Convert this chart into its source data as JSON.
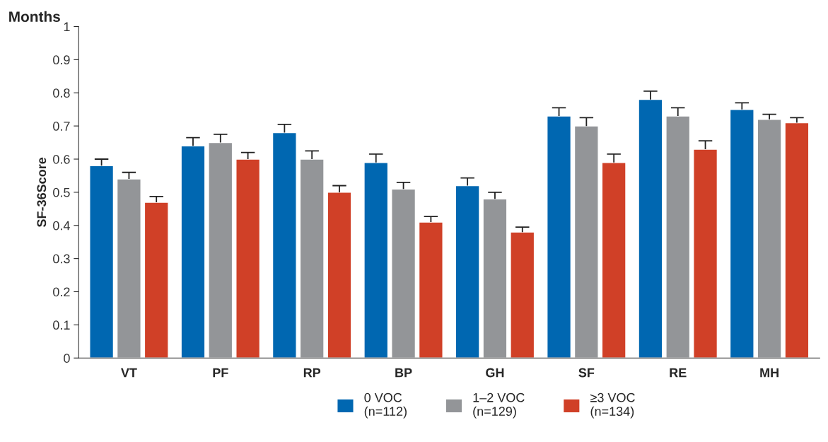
{
  "chart_data": {
    "type": "bar",
    "title": "Months",
    "ylabel": "SF-36Score",
    "categories": [
      "VT",
      "PF",
      "RP",
      "BP",
      "GH",
      "SF",
      "RE",
      "MH"
    ],
    "series": [
      {
        "name": "0 VOC\n(n=112)",
        "color": "#0067b1",
        "values": [
          0.58,
          0.64,
          0.68,
          0.59,
          0.52,
          0.73,
          0.78,
          0.75
        ],
        "errors": [
          [
            0.58,
            0.6
          ],
          [
            0.64,
            0.665
          ],
          [
            0.68,
            0.705
          ],
          [
            0.59,
            0.615
          ],
          [
            0.52,
            0.543
          ],
          [
            0.73,
            0.755
          ],
          [
            0.78,
            0.805
          ],
          [
            0.75,
            0.77
          ]
        ]
      },
      {
        "name": "1–2 VOC\n(n=129)",
        "color": "#939598",
        "values": [
          0.54,
          0.65,
          0.6,
          0.51,
          0.48,
          0.7,
          0.73,
          0.72
        ],
        "errors": [
          [
            0.54,
            0.56
          ],
          [
            0.65,
            0.675
          ],
          [
            0.6,
            0.625
          ],
          [
            0.51,
            0.53
          ],
          [
            0.48,
            0.5
          ],
          [
            0.7,
            0.725
          ],
          [
            0.73,
            0.755
          ],
          [
            0.72,
            0.735
          ]
        ]
      },
      {
        "name": "≥3 VOC\n(n=134)",
        "color": "#d04027",
        "values": [
          0.47,
          0.6,
          0.5,
          0.41,
          0.38,
          0.59,
          0.63,
          0.71
        ],
        "errors": [
          [
            0.47,
            0.487
          ],
          [
            0.6,
            0.62
          ],
          [
            0.5,
            0.52
          ],
          [
            0.41,
            0.427
          ],
          [
            0.38,
            0.395
          ],
          [
            0.59,
            0.615
          ],
          [
            0.63,
            0.655
          ],
          [
            0.71,
            0.725
          ]
        ]
      }
    ],
    "ylim": [
      0,
      1
    ],
    "yticks": [
      0,
      0.1,
      0.2,
      0.3,
      0.4,
      0.5,
      0.6,
      0.7,
      0.8,
      0.9,
      1
    ],
    "grid": false,
    "legend": "bottom"
  }
}
